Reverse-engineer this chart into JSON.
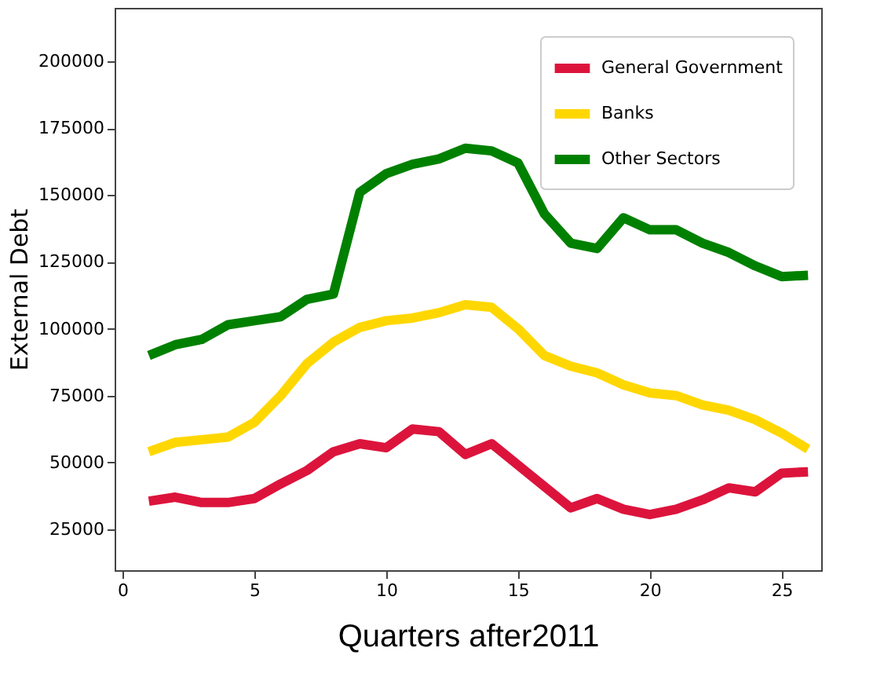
{
  "chart_data": {
    "type": "line",
    "xlabel": "Quarters after2011",
    "ylabel": "External Debt",
    "x": [
      1,
      2,
      3,
      4,
      5,
      6,
      7,
      8,
      9,
      10,
      11,
      12,
      13,
      14,
      15,
      16,
      17,
      18,
      19,
      20,
      21,
      22,
      23,
      24,
      25,
      26
    ],
    "xlim": [
      -0.3,
      26.5
    ],
    "xticks": [
      0,
      5,
      10,
      15,
      20,
      25
    ],
    "ylim": [
      9700,
      220000
    ],
    "yticks": [
      25000,
      50000,
      75000,
      100000,
      125000,
      150000,
      175000,
      200000
    ],
    "grid": false,
    "legend": "top right",
    "line_style": "solid",
    "marker": "none",
    "series": [
      {
        "name": "General Government",
        "color": "#dc143c",
        "values": [
          35500,
          37000,
          35000,
          35000,
          36500,
          42000,
          47000,
          54000,
          57000,
          55500,
          62500,
          61500,
          53000,
          57000,
          49000,
          41000,
          33000,
          36500,
          32500,
          30500,
          32500,
          36000,
          40500,
          39000,
          46000,
          46500
        ]
      },
      {
        "name": "Banks",
        "color": "#ffd700",
        "values": [
          54000,
          57500,
          58500,
          59500,
          65000,
          75000,
          87000,
          95000,
          100500,
          103000,
          104000,
          106000,
          109000,
          108000,
          100000,
          90000,
          86000,
          83500,
          79000,
          76000,
          75000,
          71500,
          69500,
          66000,
          61000,
          55000
        ]
      },
      {
        "name": "Other Sectors",
        "color": "#008000",
        "values": [
          90000,
          94000,
          96000,
          101500,
          103000,
          104500,
          111000,
          113000,
          151000,
          158000,
          161500,
          163500,
          167500,
          166500,
          162000,
          143000,
          132000,
          130000,
          141500,
          137000,
          137000,
          132000,
          128500,
          123500,
          119500,
          120000
        ]
      }
    ]
  }
}
